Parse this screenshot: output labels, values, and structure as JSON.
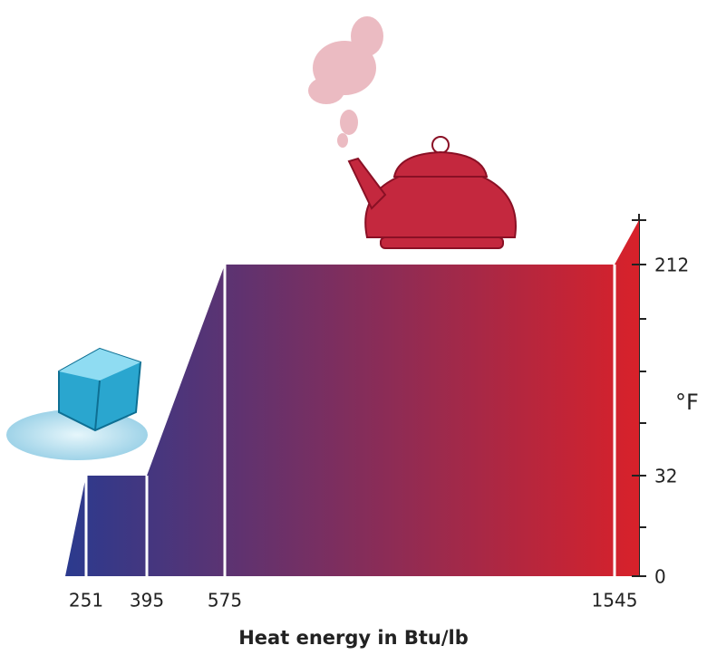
{
  "chart_data": {
    "type": "area",
    "x_label": "Heat energy in Btu/lb",
    "y_label": "°F",
    "x": [
      0,
      251,
      395,
      575,
      1545,
      1600
    ],
    "series": [
      {
        "values": [
          0,
          32,
          32,
          212,
          212,
          250
        ],
        "color_start": "#2b3a8e",
        "color_end": "#d8212a"
      }
    ],
    "xlim": [
      0,
      1600
    ],
    "xticks": [
      251,
      395,
      575,
      1545
    ],
    "ylim": [
      0,
      250
    ],
    "yticks": [
      0,
      32,
      212
    ]
  }
}
